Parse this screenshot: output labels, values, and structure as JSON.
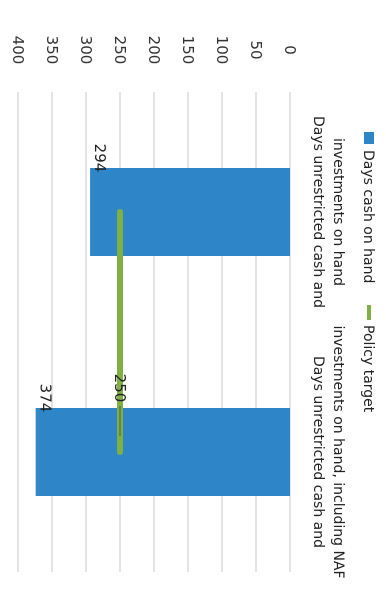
{
  "chart_data": {
    "type": "bar",
    "categories": [
      "Days unrestricted cash and investments on hand",
      "Days unrestricted cash and investments on hand, including NAF"
    ],
    "category_lines": [
      [
        "Days unrestricted cash and",
        "investments on hand"
      ],
      [
        "Days unrestricted cash and",
        "investments on hand, including NAF"
      ]
    ],
    "series": [
      {
        "name": "Days cash on hand",
        "type": "bar",
        "values": [
          294,
          374
        ],
        "color": "#2e86c8"
      },
      {
        "name": "Policy target",
        "type": "line",
        "values": [
          250,
          250
        ],
        "color": "#7fb041"
      }
    ],
    "data_labels": {
      "bars": [
        "294",
        "374"
      ],
      "target": "250"
    },
    "y_ticks": [
      "0",
      "50",
      "100",
      "150",
      "200",
      "250",
      "300",
      "350",
      "400"
    ],
    "ylim": [
      0,
      400
    ],
    "grid": true,
    "legend_position": "bottom",
    "title": "",
    "xlabel": "",
    "ylabel": ""
  }
}
